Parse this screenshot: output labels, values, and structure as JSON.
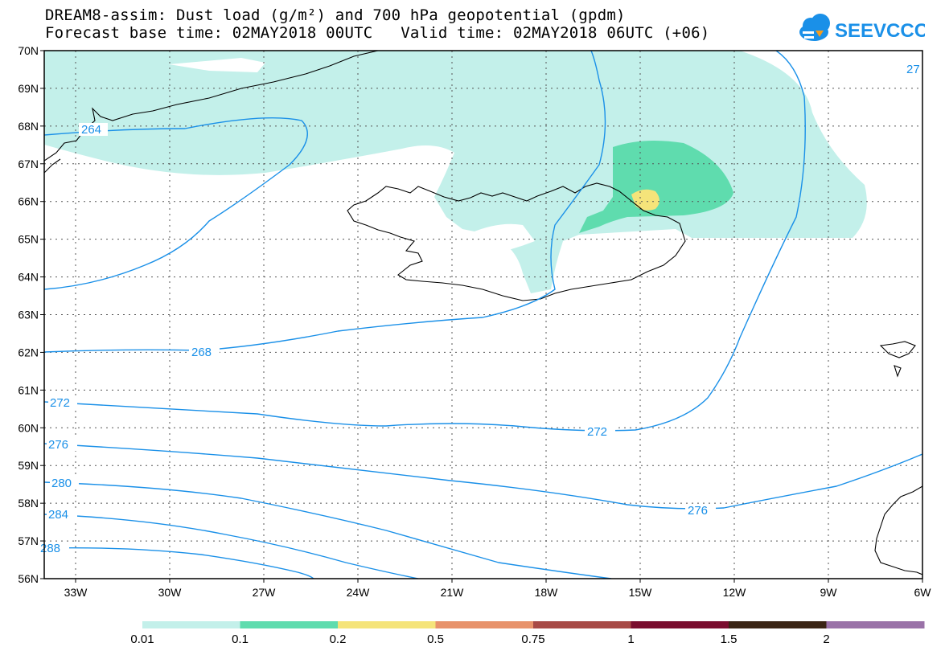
{
  "title": {
    "line1": "DREAM8-assim: Dust load (g/m²) and 700 hPa geopotential (gpdm)",
    "line2": "Forecast base time: 02MAY2018 00UTC   Valid time: 02MAY2018 06UTC (+06)"
  },
  "logo": {
    "text": "SEEVCCC",
    "icon": "cloud-icon",
    "color": "#1a90e8"
  },
  "map": {
    "lon_range": [
      -34,
      -6
    ],
    "lat_range": [
      56,
      70
    ],
    "lon_ticks": [
      "33W",
      "30W",
      "27W",
      "24W",
      "21W",
      "18W",
      "15W",
      "12W",
      "9W",
      "6W"
    ],
    "lat_ticks": [
      "70N",
      "69N",
      "68N",
      "67N",
      "66N",
      "65N",
      "64N",
      "63N",
      "62N",
      "61N",
      "60N",
      "59N",
      "58N",
      "57N",
      "56N"
    ],
    "contour_color": "#1a90e8",
    "contour_labels": [
      "264",
      "268",
      "272",
      "272",
      "276",
      "276",
      "280",
      "284",
      "288",
      "27"
    ]
  },
  "legend": {
    "colors": [
      "#c3f0ea",
      "#5fdcae",
      "#f5e47a",
      "#e8926a",
      "#a84a46",
      "#7a0d2e",
      "#3a2414",
      "#9a72a8"
    ],
    "labels": [
      "0.01",
      "0.1",
      "0.2",
      "0.5",
      "0.75",
      "1",
      "1.5",
      "2"
    ]
  }
}
